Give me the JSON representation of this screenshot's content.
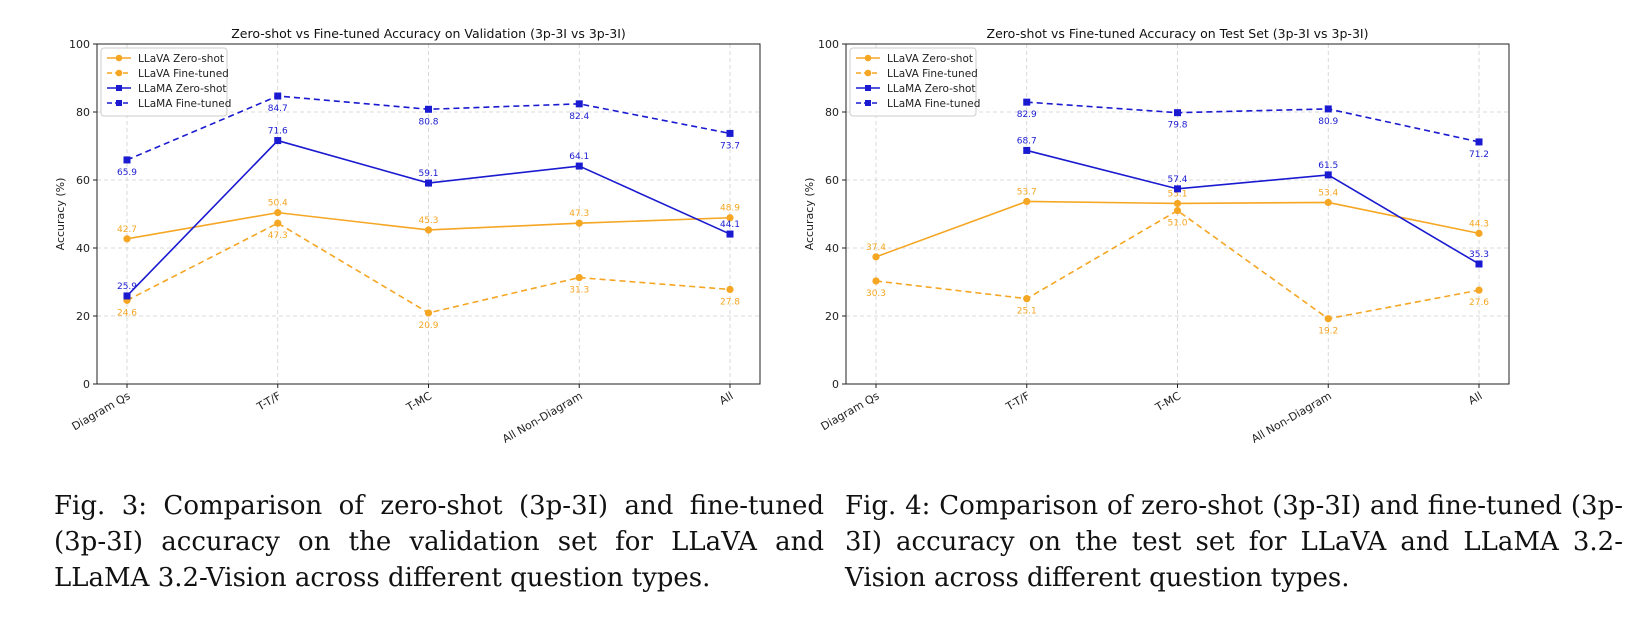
{
  "chart_data": [
    {
      "type": "line",
      "title": "Zero-shot vs Fine-tuned Accuracy on Validation (3p-3I vs 3p-3I)",
      "xlabel": "",
      "ylabel": "Accuracy (%)",
      "ylim": [
        0,
        100
      ],
      "yticks": [
        "0",
        "20",
        "40",
        "60",
        "80",
        "100"
      ],
      "categories": [
        "Diagram Qs",
        "T-T/F",
        "T-MC",
        "All Non-Diagram",
        "All"
      ],
      "grid": true,
      "legend_position": "top-left",
      "series": [
        {
          "name": "LLaVA Zero-shot",
          "color": "#f5a623",
          "dash": "solid",
          "marker": "circle",
          "values": [
            42.7,
            50.4,
            45.3,
            47.3,
            48.9
          ],
          "labels": [
            "42.7",
            "50.4",
            "45.3",
            "47.3",
            "48.9"
          ],
          "label_pos": "above"
        },
        {
          "name": "LLaVA Fine-tuned",
          "color": "#f5a623",
          "dash": "dashed",
          "marker": "circle",
          "values": [
            24.6,
            47.3,
            20.9,
            31.3,
            27.8
          ],
          "labels": [
            "24.6",
            "47.3",
            "20.9",
            "31.3",
            "27.8"
          ],
          "label_pos": "below"
        },
        {
          "name": "LLaMA Zero-shot",
          "color": "#1a1ad0",
          "dash": "solid",
          "marker": "square",
          "values": [
            25.9,
            71.6,
            59.1,
            64.1,
            44.1
          ],
          "labels": [
            "25.9",
            "71.6",
            "59.1",
            "64.1",
            "44.1"
          ],
          "label_pos": "above"
        },
        {
          "name": "LLaMA Fine-tuned",
          "color": "#1a1ad0",
          "dash": "dashed",
          "marker": "square",
          "values": [
            65.9,
            84.7,
            80.8,
            82.4,
            73.7
          ],
          "labels": [
            "65.9",
            "84.7",
            "80.8",
            "82.4",
            "73.7"
          ],
          "label_pos": "below"
        }
      ]
    },
    {
      "type": "line",
      "title": "Zero-shot vs Fine-tuned Accuracy on Test Set (3p-3I vs 3p-3I)",
      "xlabel": "",
      "ylabel": "Accuracy (%)",
      "ylim": [
        0,
        100
      ],
      "yticks": [
        "0",
        "20",
        "40",
        "60",
        "80",
        "100"
      ],
      "categories": [
        "Diagram Qs",
        "T-T/F",
        "T-MC",
        "All Non-Diagram",
        "All"
      ],
      "grid": true,
      "legend_position": "top-left",
      "series": [
        {
          "name": "LLaVA Zero-shot",
          "color": "#f5a623",
          "dash": "solid",
          "marker": "circle",
          "values": [
            37.4,
            53.7,
            53.1,
            53.4,
            44.3
          ],
          "labels": [
            "37.4",
            "53.7",
            "53.1",
            "53.4",
            "44.3"
          ],
          "label_pos": "above"
        },
        {
          "name": "LLaVA Fine-tuned",
          "color": "#f5a623",
          "dash": "dashed",
          "marker": "circle",
          "values": [
            30.3,
            25.1,
            51.0,
            19.2,
            27.6
          ],
          "labels": [
            "30.3",
            "25.1",
            "51.0",
            "19.2",
            "27.6"
          ],
          "label_pos": "below"
        },
        {
          "name": "LLaMA Zero-shot",
          "color": "#1a1ad0",
          "dash": "solid",
          "marker": "square",
          "values": [
            null,
            68.7,
            57.4,
            61.5,
            35.3
          ],
          "labels": [
            "",
            "68.7",
            "57.4",
            "61.5",
            "35.3"
          ],
          "label_pos": "above"
        },
        {
          "name": "LLaMA Fine-tuned",
          "color": "#1a1ad0",
          "dash": "dashed",
          "marker": "square",
          "values": [
            null,
            82.9,
            79.8,
            80.9,
            71.2
          ],
          "labels": [
            "",
            "82.9",
            "79.8",
            "80.9",
            "71.2"
          ],
          "label_pos": "below"
        }
      ]
    }
  ],
  "captions": {
    "fig3": "Fig. 3: Comparison of zero-shot (3p-3I) and fine-tuned (3p-3I) accuracy on the validation set for LLaVA and LLaMA 3.2-Vision across different question types.",
    "fig4": "Fig. 4: Comparison of zero-shot (3p-3I) and fine-tuned (3p-3I) accuracy on the test set for LLaVA and LLaMA 3.2-Vision across different question types."
  }
}
